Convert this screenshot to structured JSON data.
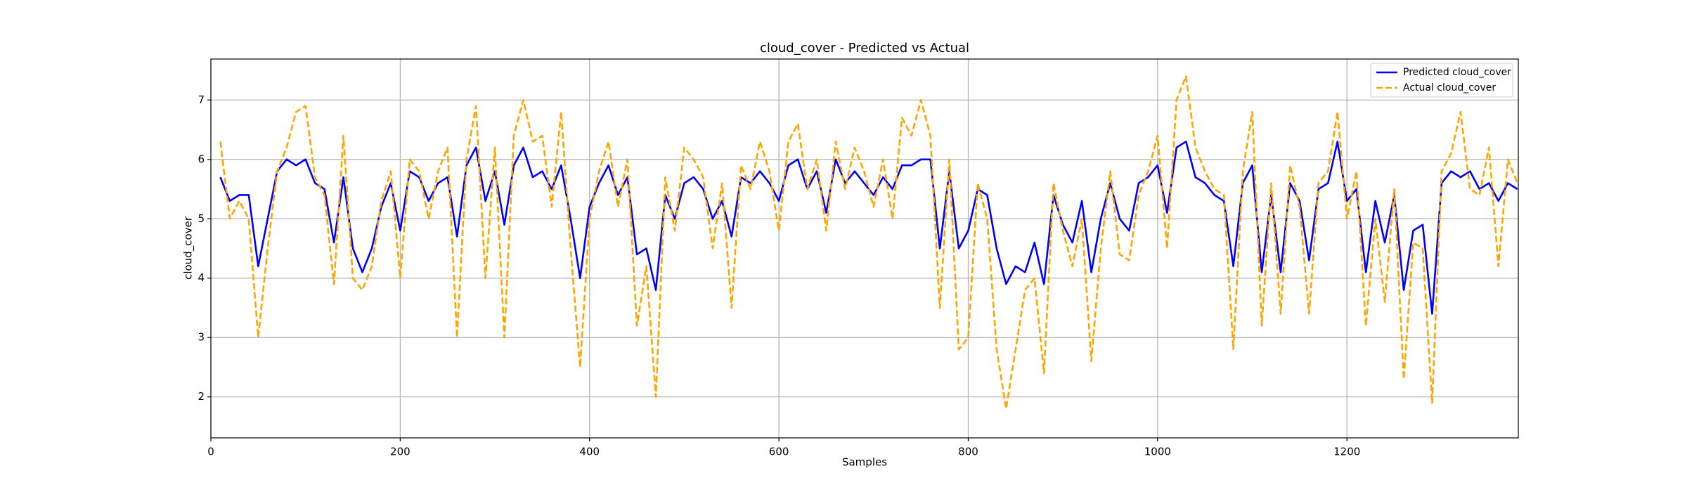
{
  "chart_data": {
    "type": "line",
    "title": "cloud_cover - Predicted vs Actual",
    "xlabel": "Samples",
    "ylabel": "cloud_cover",
    "x": [
      10,
      20,
      30,
      40,
      50,
      60,
      70,
      80,
      90,
      100,
      110,
      120,
      130,
      140,
      150,
      160,
      170,
      180,
      190,
      200,
      210,
      220,
      230,
      240,
      250,
      260,
      270,
      280,
      290,
      300,
      310,
      320,
      330,
      340,
      350,
      360,
      370,
      380,
      390,
      400,
      410,
      420,
      430,
      440,
      450,
      460,
      470,
      480,
      490,
      500,
      510,
      520,
      530,
      540,
      550,
      560,
      570,
      580,
      590,
      600,
      610,
      620,
      630,
      640,
      650,
      660,
      670,
      680,
      690,
      700,
      710,
      720,
      730,
      740,
      750,
      760,
      770,
      780,
      790,
      800,
      810,
      820,
      830,
      840,
      850,
      860,
      870,
      880,
      890,
      900,
      910,
      920,
      930,
      940,
      950,
      960,
      970,
      980,
      990,
      1000,
      1010,
      1020,
      1030,
      1040,
      1050,
      1060,
      1070,
      1080,
      1090,
      1100,
      1110,
      1120,
      1130,
      1140,
      1150,
      1160,
      1170,
      1180,
      1190,
      1200,
      1210,
      1220,
      1230,
      1240,
      1250,
      1260,
      1270,
      1280,
      1290,
      1300,
      1310,
      1320,
      1330,
      1340,
      1350,
      1360,
      1370,
      1380
    ],
    "series": [
      {
        "name": "Predicted cloud_cover",
        "color": "#0000ff",
        "dashed": false,
        "values": [
          5.7,
          5.3,
          5.4,
          5.4,
          4.2,
          5.0,
          5.8,
          6.0,
          5.9,
          6.0,
          5.6,
          5.5,
          4.6,
          5.7,
          4.5,
          4.1,
          4.5,
          5.2,
          5.6,
          4.8,
          5.8,
          5.7,
          5.3,
          5.6,
          5.7,
          4.7,
          5.9,
          6.2,
          5.3,
          5.8,
          4.9,
          5.9,
          6.2,
          5.7,
          5.8,
          5.5,
          5.9,
          5.0,
          4.0,
          5.2,
          5.6,
          5.9,
          5.4,
          5.7,
          4.4,
          4.5,
          3.8,
          5.4,
          5.0,
          5.6,
          5.7,
          5.5,
          5.0,
          5.3,
          4.7,
          5.7,
          5.6,
          5.8,
          5.6,
          5.3,
          5.9,
          6.0,
          5.5,
          5.8,
          5.1,
          6.0,
          5.6,
          5.8,
          5.6,
          5.4,
          5.7,
          5.5,
          5.9,
          5.9,
          6.0,
          6.0,
          4.5,
          5.8,
          4.5,
          4.8,
          5.5,
          5.4,
          4.5,
          3.9,
          4.2,
          4.1,
          4.6,
          3.9,
          5.4,
          4.9,
          4.6,
          5.3,
          4.1,
          5.0,
          5.6,
          5.0,
          4.8,
          5.6,
          5.7,
          5.9,
          5.1,
          6.2,
          6.3,
          5.7,
          5.6,
          5.4,
          5.3,
          4.2,
          5.6,
          5.9,
          4.1,
          5.4,
          4.1,
          5.6,
          5.3,
          4.3,
          5.5,
          5.6,
          6.3,
          5.3,
          5.5,
          4.1,
          5.3,
          4.6,
          5.4,
          3.8,
          4.8,
          4.9,
          3.4,
          5.6,
          5.8,
          5.7,
          5.8,
          5.5,
          5.6,
          5.3,
          5.6,
          5.5
        ]
      },
      {
        "name": "Actual cloud_cover",
        "color": "#ffa500",
        "dashed": true,
        "values": [
          6.3,
          5.0,
          5.3,
          5.0,
          3.0,
          4.5,
          5.8,
          6.2,
          6.8,
          6.9,
          5.7,
          5.4,
          3.9,
          6.4,
          4.0,
          3.8,
          4.2,
          5.3,
          5.8,
          4.0,
          6.0,
          5.8,
          5.0,
          5.8,
          6.2,
          3.0,
          6.0,
          6.9,
          4.0,
          6.2,
          3.0,
          6.4,
          7.0,
          6.3,
          6.4,
          5.2,
          6.8,
          4.5,
          2.5,
          5.0,
          5.8,
          6.3,
          5.2,
          6.0,
          3.2,
          4.2,
          2.0,
          5.7,
          4.8,
          6.2,
          6.0,
          5.7,
          4.5,
          5.6,
          3.5,
          5.9,
          5.5,
          6.3,
          5.8,
          4.8,
          6.3,
          6.6,
          5.5,
          6.0,
          4.8,
          6.3,
          5.5,
          6.2,
          5.8,
          5.2,
          6.0,
          5.0,
          6.7,
          6.4,
          7.0,
          6.4,
          3.5,
          6.0,
          2.8,
          3.0,
          5.6,
          5.0,
          2.8,
          1.8,
          2.8,
          3.8,
          4.0,
          2.4,
          5.6,
          4.8,
          4.2,
          5.0,
          2.6,
          4.5,
          5.8,
          4.4,
          4.3,
          5.4,
          5.8,
          6.4,
          4.5,
          7.0,
          7.4,
          6.2,
          5.8,
          5.5,
          5.4,
          2.8,
          5.8,
          6.8,
          3.2,
          5.6,
          3.4,
          5.9,
          5.2,
          3.4,
          5.6,
          5.8,
          6.8,
          5.0,
          5.8,
          3.2,
          5.0,
          3.6,
          5.5,
          2.3,
          4.6,
          4.5,
          1.9,
          5.8,
          6.1,
          6.8,
          5.5,
          5.4,
          6.2,
          4.2,
          6.0,
          5.6
        ]
      }
    ],
    "xlim": [
      0,
      1381
    ],
    "ylim": [
      1.31,
      7.69
    ],
    "xticks": [
      0,
      200,
      400,
      600,
      800,
      1000,
      1200
    ],
    "yticks": [
      2,
      3,
      4,
      5,
      6,
      7
    ],
    "grid": true,
    "legend": "upper right"
  }
}
